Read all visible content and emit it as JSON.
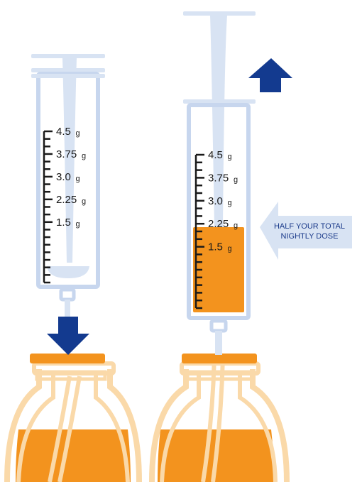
{
  "colors": {
    "syringe": "#d8e3f3",
    "syringe_outline": "#c7d6ee",
    "medicine": "#f3931e",
    "bottle_outline": "#fad9a9",
    "cap": "#f3931e",
    "arrow": "#133a8f",
    "callout_fill": "#d8e3f3",
    "callout_text": "#1a3a8a",
    "scale_ink": "#1a1a1a"
  },
  "scale": {
    "unit": "g",
    "labels": [
      "4.5",
      "3.75",
      "3.0",
      "2.25",
      "1.5"
    ]
  },
  "left_syringe": {
    "fill_level_g": 0,
    "arrow_direction": "down",
    "arrow_icon": "arrow-down-icon"
  },
  "right_syringe": {
    "fill_level_g": 2.25,
    "arrow_direction": "up",
    "arrow_icon": "arrow-up-icon"
  },
  "callout": {
    "line1": "HALF YOUR TOTAL",
    "line2": "NIGHTLY DOSE",
    "arrow_icon": "arrow-left-callout"
  }
}
